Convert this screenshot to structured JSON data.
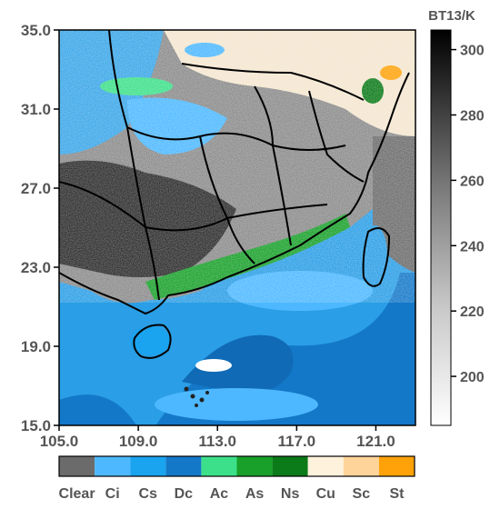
{
  "map": {
    "lon_ticks": [
      "105.0",
      "109.0",
      "113.0",
      "117.0",
      "121.0"
    ],
    "lat_ticks": [
      "15.0",
      "19.0",
      "23.0",
      "27.0",
      "31.0",
      "35.0"
    ],
    "lon_range": [
      105,
      123
    ],
    "lat_range": [
      15,
      35
    ]
  },
  "colorbar": {
    "title": "BT13/K",
    "ticks": [
      "200",
      "220",
      "240",
      "260",
      "280",
      "300"
    ],
    "tick_values": [
      200,
      220,
      240,
      260,
      280,
      300
    ],
    "range": [
      185,
      306
    ]
  },
  "cloud_legend": {
    "classes": [
      {
        "label": "Clear",
        "color": "#6b6b6b"
      },
      {
        "label": "Ci",
        "color": "#4db8ff"
      },
      {
        "label": "Cs",
        "color": "#1aa3ee"
      },
      {
        "label": "Dc",
        "color": "#1478c8"
      },
      {
        "label": "Ac",
        "color": "#3de08a"
      },
      {
        "label": "As",
        "color": "#18a02a"
      },
      {
        "label": "Ns",
        "color": "#0b7a18"
      },
      {
        "label": "Cu",
        "color": "#fff2dc"
      },
      {
        "label": "Sc",
        "color": "#ffd49a"
      },
      {
        "label": "St",
        "color": "#ffa20a"
      }
    ]
  }
}
